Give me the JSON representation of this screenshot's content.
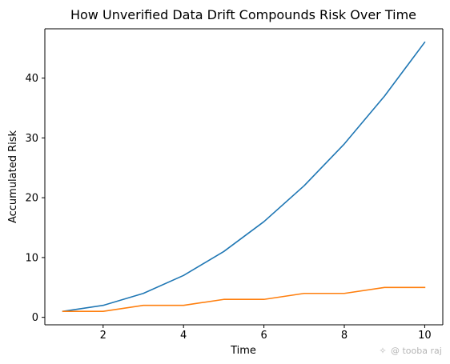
{
  "chart_data": {
    "type": "line",
    "title": "How Unverified Data Drift Compounds Risk Over Time",
    "xlabel": "Time",
    "ylabel": "Accumulated Risk",
    "x": [
      1,
      2,
      3,
      4,
      5,
      6,
      7,
      8,
      9,
      10
    ],
    "series": [
      {
        "color": "#1f77b4",
        "values": [
          1,
          2,
          4,
          7,
          11,
          16,
          22,
          29,
          37,
          46
        ]
      },
      {
        "color": "#ff7f0e",
        "values": [
          1,
          1,
          2,
          2,
          3,
          3,
          4,
          4,
          5,
          5
        ]
      }
    ],
    "xlim": [
      0.55,
      10.45
    ],
    "ylim": [
      -1.25,
      48.25
    ],
    "xticks": [
      2,
      4,
      6,
      8,
      10
    ],
    "yticks": [
      0,
      10,
      20,
      30,
      40
    ],
    "grid": false,
    "legend": "none"
  },
  "watermark": {
    "text": "@ tooba raj",
    "icon": "sparkle-icon"
  }
}
